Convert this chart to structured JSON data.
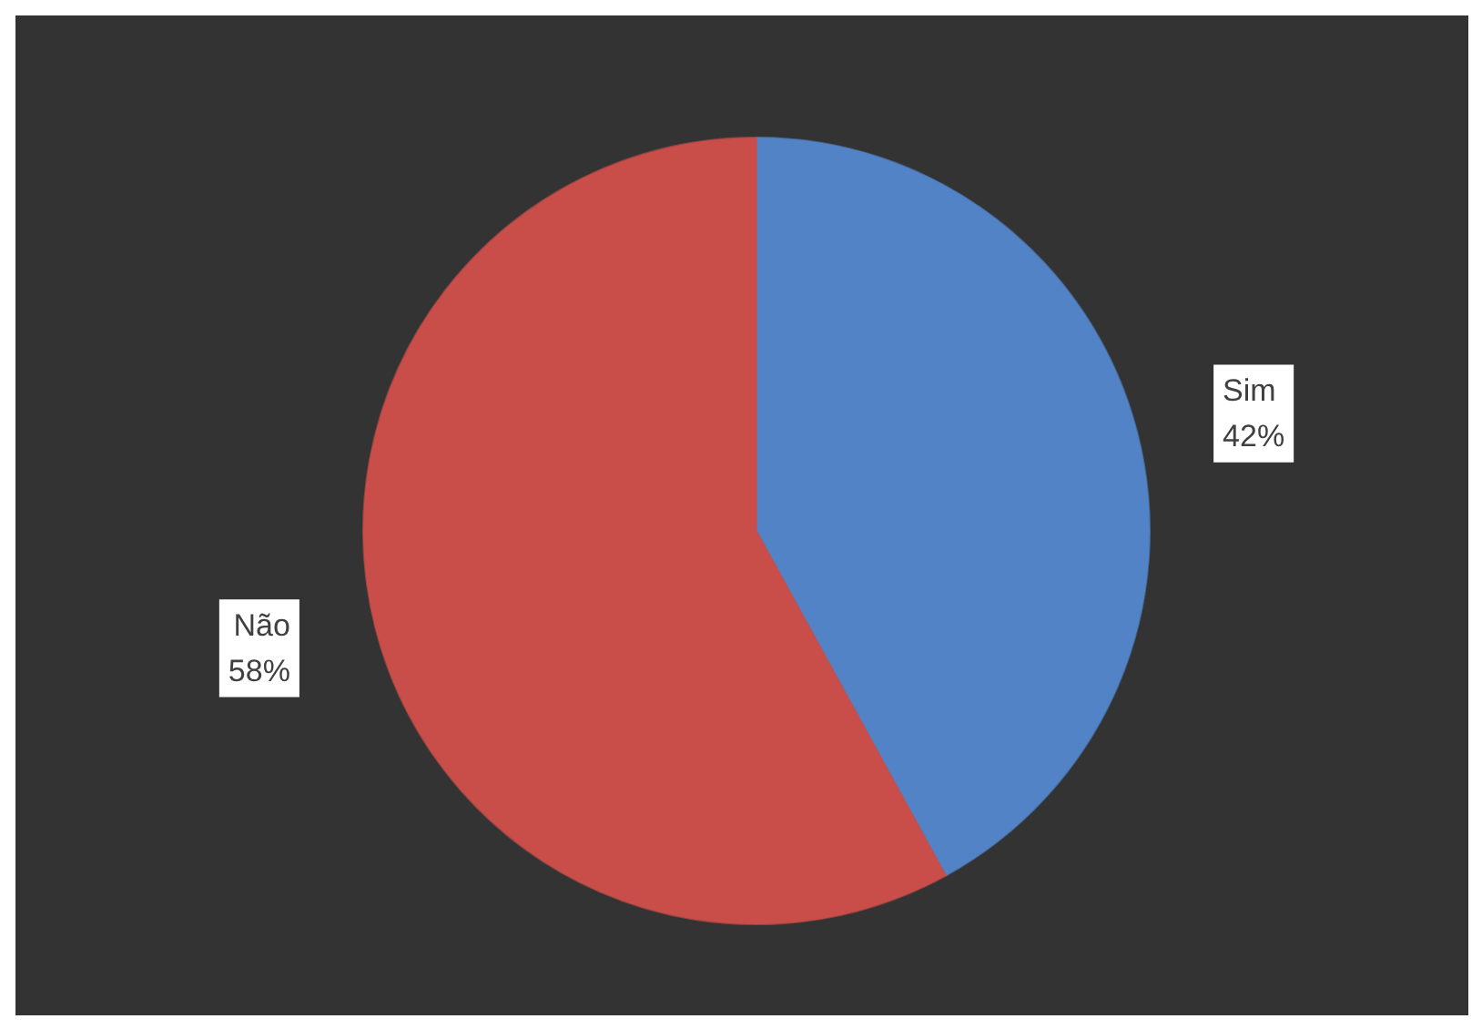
{
  "chart_data": {
    "type": "pie",
    "categories": [
      "Sim",
      "Não"
    ],
    "values": [
      42,
      58
    ],
    "value_labels": [
      "42%",
      "58%"
    ],
    "colors": [
      "#5283c6",
      "#c94e4a"
    ]
  }
}
